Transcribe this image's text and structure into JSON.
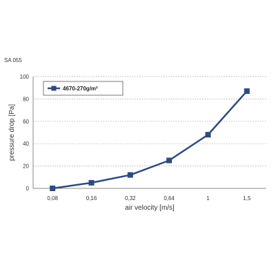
{
  "code_label": "SA 055",
  "chart_data": {
    "type": "line",
    "title": "",
    "xlabel": "air velocity  [m/s]",
    "ylabel": "pressure drop  [Pa]",
    "ylim": [
      0,
      100
    ],
    "yticks": [
      0,
      20,
      40,
      60,
      80,
      100
    ],
    "categories": [
      "0,08",
      "0,16",
      "0,32",
      "0,64",
      "1",
      "1,5"
    ],
    "grid": "horizontal-dotted",
    "legend_position": "top-left",
    "series": [
      {
        "name": "4670-270g/m²",
        "color": "#2f4a7d",
        "marker": "square",
        "values": [
          0,
          5,
          12,
          25,
          48,
          87
        ]
      }
    ]
  }
}
